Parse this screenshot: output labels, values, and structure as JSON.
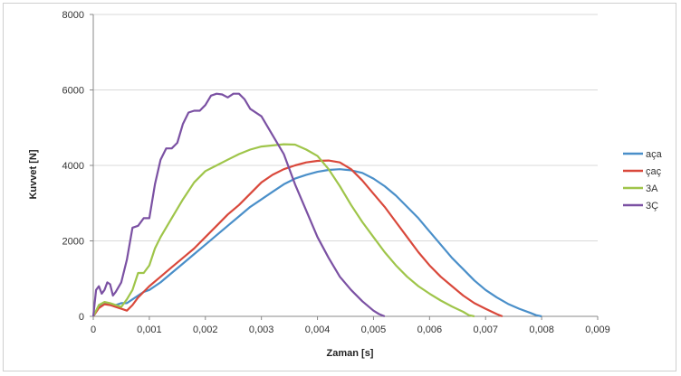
{
  "chart_data": {
    "type": "line",
    "title": "",
    "xlabel": "Zaman [s]",
    "ylabel": "Kuvvet [N]",
    "xlim": [
      0,
      0.009
    ],
    "ylim": [
      0,
      8000
    ],
    "x_ticks": [
      0,
      0.001,
      0.002,
      0.003,
      0.004,
      0.005,
      0.006,
      0.007,
      0.008,
      0.009
    ],
    "x_tick_labels": [
      "0",
      "0,001",
      "0,002",
      "0,003",
      "0,004",
      "0,005",
      "0,006",
      "0,007",
      "0,008",
      "0,009"
    ],
    "y_ticks": [
      0,
      2000,
      4000,
      6000,
      8000
    ],
    "y_tick_labels": [
      "0",
      "2000",
      "4000",
      "6000",
      "8000"
    ],
    "grid": "horizontal",
    "legend_position": "right",
    "series": [
      {
        "name": "aça",
        "color": "#4a8fc9",
        "points": [
          [
            0,
            0
          ],
          [
            0.0001,
            250
          ],
          [
            0.0002,
            350
          ],
          [
            0.0003,
            300
          ],
          [
            0.0004,
            300
          ],
          [
            0.0005,
            350
          ],
          [
            0.0006,
            350
          ],
          [
            0.0007,
            450
          ],
          [
            0.0008,
            550
          ],
          [
            0.0009,
            650
          ],
          [
            0.001,
            700
          ],
          [
            0.0012,
            900
          ],
          [
            0.0014,
            1150
          ],
          [
            0.0016,
            1400
          ],
          [
            0.0018,
            1650
          ],
          [
            0.002,
            1900
          ],
          [
            0.0022,
            2150
          ],
          [
            0.0024,
            2400
          ],
          [
            0.0026,
            2650
          ],
          [
            0.0028,
            2900
          ],
          [
            0.003,
            3100
          ],
          [
            0.0032,
            3300
          ],
          [
            0.0034,
            3500
          ],
          [
            0.0036,
            3650
          ],
          [
            0.0038,
            3750
          ],
          [
            0.004,
            3830
          ],
          [
            0.0042,
            3880
          ],
          [
            0.0044,
            3900
          ],
          [
            0.0046,
            3870
          ],
          [
            0.0048,
            3800
          ],
          [
            0.005,
            3650
          ],
          [
            0.0052,
            3450
          ],
          [
            0.0054,
            3200
          ],
          [
            0.0056,
            2900
          ],
          [
            0.0058,
            2600
          ],
          [
            0.006,
            2250
          ],
          [
            0.0062,
            1900
          ],
          [
            0.0064,
            1550
          ],
          [
            0.0066,
            1250
          ],
          [
            0.0068,
            950
          ],
          [
            0.007,
            700
          ],
          [
            0.0072,
            500
          ],
          [
            0.0074,
            330
          ],
          [
            0.0076,
            200
          ],
          [
            0.0078,
            90
          ],
          [
            0.0079,
            30
          ],
          [
            0.008,
            0
          ]
        ]
      },
      {
        "name": "çaç",
        "color": "#d9483b",
        "points": [
          [
            0,
            0
          ],
          [
            0.0001,
            220
          ],
          [
            0.0002,
            320
          ],
          [
            0.0003,
            300
          ],
          [
            0.0004,
            250
          ],
          [
            0.0005,
            200
          ],
          [
            0.0006,
            150
          ],
          [
            0.0007,
            300
          ],
          [
            0.0008,
            500
          ],
          [
            0.0009,
            650
          ],
          [
            0.001,
            800
          ],
          [
            0.0012,
            1050
          ],
          [
            0.0014,
            1300
          ],
          [
            0.0016,
            1550
          ],
          [
            0.0018,
            1800
          ],
          [
            0.002,
            2100
          ],
          [
            0.0022,
            2400
          ],
          [
            0.0024,
            2700
          ],
          [
            0.0026,
            2950
          ],
          [
            0.0028,
            3250
          ],
          [
            0.003,
            3550
          ],
          [
            0.0032,
            3750
          ],
          [
            0.0034,
            3900
          ],
          [
            0.0036,
            4000
          ],
          [
            0.0038,
            4080
          ],
          [
            0.004,
            4120
          ],
          [
            0.0042,
            4130
          ],
          [
            0.0044,
            4080
          ],
          [
            0.0046,
            3900
          ],
          [
            0.0048,
            3600
          ],
          [
            0.005,
            3250
          ],
          [
            0.0052,
            2900
          ],
          [
            0.0054,
            2500
          ],
          [
            0.0056,
            2100
          ],
          [
            0.0058,
            1700
          ],
          [
            0.006,
            1350
          ],
          [
            0.0062,
            1050
          ],
          [
            0.0064,
            800
          ],
          [
            0.0066,
            550
          ],
          [
            0.0068,
            350
          ],
          [
            0.007,
            200
          ],
          [
            0.0072,
            60
          ],
          [
            0.0073,
            0
          ]
        ]
      },
      {
        "name": "3A",
        "color": "#9fc54a",
        "points": [
          [
            0,
            0
          ],
          [
            0.0001,
            300
          ],
          [
            0.0002,
            380
          ],
          [
            0.0003,
            350
          ],
          [
            0.0004,
            300
          ],
          [
            0.0005,
            250
          ],
          [
            0.0006,
            450
          ],
          [
            0.0007,
            700
          ],
          [
            0.0008,
            1150
          ],
          [
            0.0009,
            1150
          ],
          [
            0.001,
            1350
          ],
          [
            0.0011,
            1800
          ],
          [
            0.0012,
            2100
          ],
          [
            0.0014,
            2600
          ],
          [
            0.0016,
            3100
          ],
          [
            0.0018,
            3550
          ],
          [
            0.002,
            3850
          ],
          [
            0.0022,
            4000
          ],
          [
            0.0024,
            4150
          ],
          [
            0.0026,
            4300
          ],
          [
            0.0028,
            4420
          ],
          [
            0.003,
            4500
          ],
          [
            0.0032,
            4530
          ],
          [
            0.0034,
            4560
          ],
          [
            0.0036,
            4550
          ],
          [
            0.0038,
            4420
          ],
          [
            0.004,
            4250
          ],
          [
            0.0042,
            3900
          ],
          [
            0.0044,
            3450
          ],
          [
            0.0046,
            2950
          ],
          [
            0.0048,
            2500
          ],
          [
            0.005,
            2100
          ],
          [
            0.0052,
            1700
          ],
          [
            0.0054,
            1350
          ],
          [
            0.0056,
            1050
          ],
          [
            0.0058,
            800
          ],
          [
            0.006,
            600
          ],
          [
            0.0062,
            420
          ],
          [
            0.0064,
            260
          ],
          [
            0.0066,
            120
          ],
          [
            0.0067,
            30
          ],
          [
            0.0068,
            0
          ]
        ]
      },
      {
        "name": "3Ç",
        "color": "#7b51a3",
        "points": [
          [
            0,
            0
          ],
          [
            5e-05,
            700
          ],
          [
            0.0001,
            800
          ],
          [
            0.00015,
            600
          ],
          [
            0.0002,
            700
          ],
          [
            0.00025,
            900
          ],
          [
            0.0003,
            850
          ],
          [
            0.00035,
            550
          ],
          [
            0.0004,
            650
          ],
          [
            0.0005,
            900
          ],
          [
            0.0006,
            1500
          ],
          [
            0.0007,
            2350
          ],
          [
            0.0008,
            2400
          ],
          [
            0.0009,
            2600
          ],
          [
            0.001,
            2600
          ],
          [
            0.0011,
            3500
          ],
          [
            0.0012,
            4150
          ],
          [
            0.0013,
            4450
          ],
          [
            0.0014,
            4450
          ],
          [
            0.0015,
            4600
          ],
          [
            0.0016,
            5100
          ],
          [
            0.0017,
            5400
          ],
          [
            0.0018,
            5450
          ],
          [
            0.0019,
            5450
          ],
          [
            0.002,
            5600
          ],
          [
            0.0021,
            5850
          ],
          [
            0.0022,
            5900
          ],
          [
            0.0023,
            5880
          ],
          [
            0.0024,
            5800
          ],
          [
            0.0025,
            5900
          ],
          [
            0.0026,
            5900
          ],
          [
            0.0027,
            5750
          ],
          [
            0.0028,
            5500
          ],
          [
            0.003,
            5300
          ],
          [
            0.0032,
            4800
          ],
          [
            0.0034,
            4300
          ],
          [
            0.0036,
            3500
          ],
          [
            0.0038,
            2800
          ],
          [
            0.004,
            2100
          ],
          [
            0.0042,
            1550
          ],
          [
            0.0044,
            1050
          ],
          [
            0.0046,
            700
          ],
          [
            0.0048,
            400
          ],
          [
            0.005,
            150
          ],
          [
            0.0051,
            60
          ],
          [
            0.0052,
            0
          ]
        ]
      }
    ]
  }
}
